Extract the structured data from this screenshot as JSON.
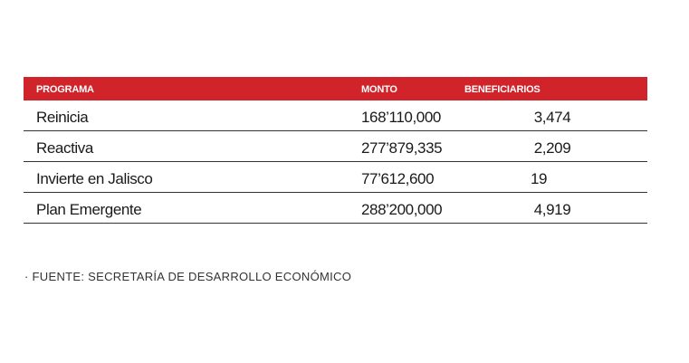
{
  "table": {
    "headers": [
      "PROGRAMA",
      "MONTO",
      "BENEFICIARIOS"
    ],
    "rows": [
      {
        "programa": "Reinicia",
        "monto": "168’110,000",
        "beneficiarios": "3,474"
      },
      {
        "programa": "Reactiva",
        "monto": "277’879,335",
        "beneficiarios": "2,209"
      },
      {
        "programa": "Invierte en Jalisco",
        "monto": "77’612,600",
        "beneficiarios": "19"
      },
      {
        "programa": "Plan Emergente",
        "monto": "288’200,000",
        "beneficiarios": "4,919"
      }
    ],
    "header_color": "#d1232a"
  },
  "source": "· FUENTE: SECRETARÍA DE DESARROLLO ECONÓMICO"
}
